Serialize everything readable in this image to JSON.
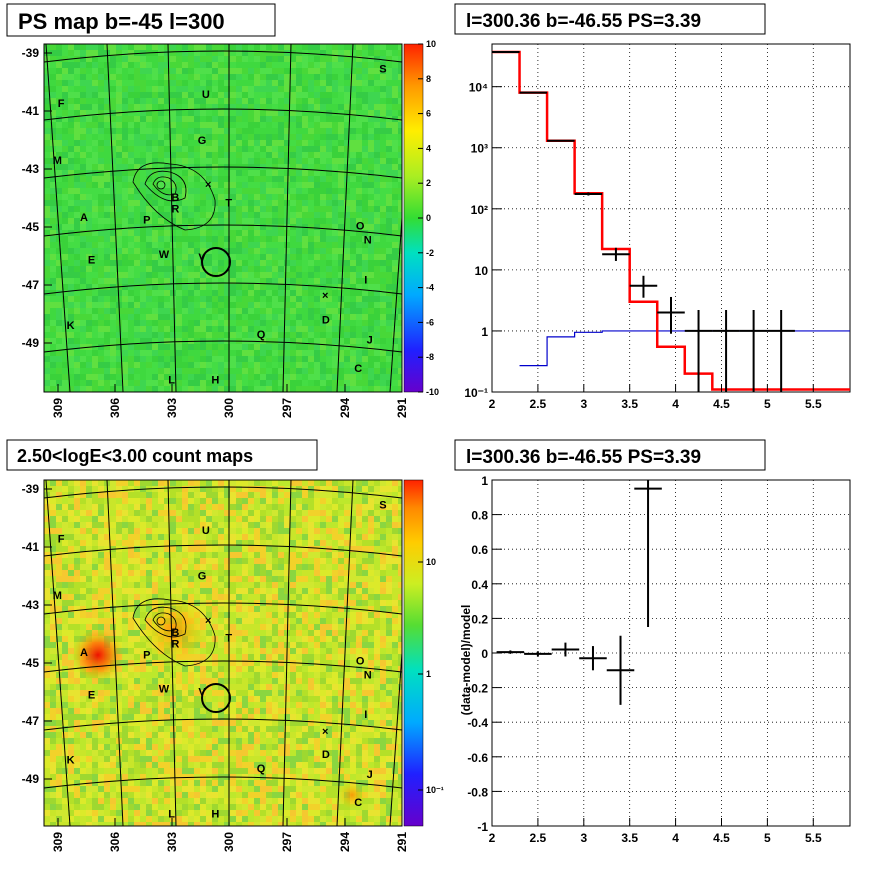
{
  "panels": {
    "ps_map": {
      "title": "PS map b=-45 l=300"
    },
    "count_map": {
      "title": "2.50<logE<3.00 count maps"
    },
    "spectrum": {
      "title": "l=300.36 b=-46.55 PS=3.39"
    },
    "residual": {
      "title": "l=300.36 b=-46.55 PS=3.39"
    }
  },
  "colors": {
    "data": "#000000",
    "model": "#ff0000",
    "background": "#0000cc",
    "map_green": "#33dd33"
  },
  "chart_data": [
    {
      "type": "heatmap",
      "id": "ps_map",
      "title": "PS map b=-45 l=300",
      "x_ticks": [
        "309",
        "306",
        "303",
        "300",
        "297",
        "294",
        "291"
      ],
      "y_ticks": [
        "-39",
        "-41",
        "-43",
        "-45",
        "-47",
        "-49"
      ],
      "colorbar_ticks": [
        "10",
        "8",
        "6",
        "4",
        "2",
        "0",
        "-2",
        "-4",
        "-6",
        "-8",
        "-10"
      ],
      "zlim": [
        -10,
        10
      ],
      "sources": [
        {
          "n": "S",
          "l": 291.7,
          "b": -39.6
        },
        {
          "n": "F",
          "l": 308.6,
          "b": -40.8
        },
        {
          "n": "U",
          "l": 301.0,
          "b": -40.5
        },
        {
          "n": "G",
          "l": 301.2,
          "b": -42.1
        },
        {
          "n": "M",
          "l": 308.8,
          "b": -42.8
        },
        {
          "n": "B",
          "l": 302.6,
          "b": -44.1
        },
        {
          "n": "R",
          "l": 302.6,
          "b": -44.5
        },
        {
          "n": "T",
          "l": 299.8,
          "b": -44.3
        },
        {
          "n": "A",
          "l": 307.4,
          "b": -44.8
        },
        {
          "n": "P",
          "l": 304.1,
          "b": -44.9
        },
        {
          "n": "O",
          "l": 292.9,
          "b": -45.1
        },
        {
          "n": "N",
          "l": 292.5,
          "b": -45.6
        },
        {
          "n": "E",
          "l": 307.0,
          "b": -46.3
        },
        {
          "n": "W",
          "l": 303.2,
          "b": -46.1
        },
        {
          "n": "V",
          "l": 301.2,
          "b": -46.2
        },
        {
          "n": "I",
          "l": 292.6,
          "b": -47.0
        },
        {
          "n": "D",
          "l": 294.7,
          "b": -48.4
        },
        {
          "n": "K",
          "l": 308.1,
          "b": -48.6
        },
        {
          "n": "Q",
          "l": 298.1,
          "b": -48.9
        },
        {
          "n": "J",
          "l": 292.4,
          "b": -49.1
        },
        {
          "n": "C",
          "l": 293.0,
          "b": -50.1
        },
        {
          "n": "L",
          "l": 302.8,
          "b": -50.5
        },
        {
          "n": "H",
          "l": 300.5,
          "b": -50.5
        }
      ],
      "circle": {
        "l": 300.36,
        "b": -46.55
      }
    },
    {
      "type": "heatmap",
      "id": "count_map",
      "title": "2.50<logE<3.00 count maps",
      "x_ticks": [
        "309",
        "306",
        "303",
        "300",
        "297",
        "294",
        "291"
      ],
      "y_ticks": [
        "-39",
        "-41",
        "-43",
        "-45",
        "-47",
        "-49"
      ],
      "colorbar_ticks": [
        "10",
        "1",
        "10⁻¹"
      ],
      "log_z": true
    },
    {
      "type": "line",
      "id": "spectrum",
      "title": "l=300.36 b=-46.55 PS=3.39",
      "x_ticks": [
        "2",
        "2.5",
        "3",
        "3.5",
        "4",
        "4.5",
        "5",
        "5.5"
      ],
      "y_ticks": [
        "10⁻¹",
        "1",
        "10",
        "10²",
        "10³",
        "10⁴"
      ],
      "xlim": [
        2,
        5.9
      ],
      "ylim": [
        0.1,
        50000
      ],
      "log_y": true,
      "grid": true,
      "data_points": [
        {
          "x": 2.15,
          "y": 37000,
          "xe": 0.15,
          "ylo": 36800,
          "yhi": 37200
        },
        {
          "x": 2.45,
          "y": 8000,
          "xe": 0.15,
          "ylo": 7900,
          "yhi": 8100
        },
        {
          "x": 2.75,
          "y": 1300,
          "xe": 0.15,
          "ylo": 1270,
          "yhi": 1330
        },
        {
          "x": 3.05,
          "y": 175,
          "xe": 0.15,
          "ylo": 165,
          "yhi": 185
        },
        {
          "x": 3.35,
          "y": 18,
          "xe": 0.15,
          "ylo": 14,
          "yhi": 23
        },
        {
          "x": 3.65,
          "y": 5.5,
          "xe": 0.15,
          "ylo": 3.5,
          "yhi": 8
        },
        {
          "x": 3.95,
          "y": 2.0,
          "xe": 0.15,
          "ylo": 0.9,
          "yhi": 3.6
        },
        {
          "x": 4.25,
          "y": 1.0,
          "xe": 0.15,
          "ylo": 0.1,
          "yhi": 2.2
        },
        {
          "x": 4.55,
          "y": 1.0,
          "xe": 0.15,
          "ylo": 0.1,
          "yhi": 2.2
        },
        {
          "x": 4.85,
          "y": 1.0,
          "xe": 0.15,
          "ylo": 0.1,
          "yhi": 2.2
        },
        {
          "x": 5.15,
          "y": 1.0,
          "xe": 0.15,
          "ylo": 0.1,
          "yhi": 2.2
        }
      ],
      "model_steps": [
        {
          "x0": 2.0,
          "x1": 2.3,
          "y": 37000
        },
        {
          "x0": 2.3,
          "x1": 2.6,
          "y": 8000
        },
        {
          "x0": 2.6,
          "x1": 2.9,
          "y": 1300
        },
        {
          "x0": 2.9,
          "x1": 3.2,
          "y": 180
        },
        {
          "x0": 3.2,
          "x1": 3.5,
          "y": 22
        },
        {
          "x0": 3.5,
          "x1": 3.8,
          "y": 3.0
        },
        {
          "x0": 3.8,
          "x1": 4.1,
          "y": 0.55
        },
        {
          "x0": 4.1,
          "x1": 4.4,
          "y": 0.2
        },
        {
          "x0": 4.4,
          "x1": 5.9,
          "y": 0.11
        }
      ],
      "bkg_steps": [
        {
          "x0": 2.3,
          "x1": 2.6,
          "y": 0.27
        },
        {
          "x0": 2.6,
          "x1": 2.9,
          "y": 0.8
        },
        {
          "x0": 2.9,
          "x1": 3.2,
          "y": 0.95
        },
        {
          "x0": 3.2,
          "x1": 5.9,
          "y": 1.0
        }
      ]
    },
    {
      "type": "scatter",
      "id": "residual",
      "title": "l=300.36 b=-46.55 PS=3.39",
      "ylabel": "(data-model)/model",
      "x_ticks": [
        "2",
        "2.5",
        "3",
        "3.5",
        "4",
        "4.5",
        "5",
        "5.5"
      ],
      "y_ticks": [
        "1",
        "0.8",
        "0.6",
        "0.4",
        "0.2",
        "0",
        "-0.2",
        "-0.4",
        "-0.6",
        "-0.8",
        "-1"
      ],
      "xlim": [
        2,
        5.9
      ],
      "ylim": [
        -1,
        1
      ],
      "grid": true,
      "points": [
        {
          "x": 2.2,
          "y": 0.005,
          "xe": 0.15,
          "ylo": -0.005,
          "yhi": 0.015
        },
        {
          "x": 2.5,
          "y": -0.005,
          "xe": 0.15,
          "ylo": -0.02,
          "yhi": 0.01
        },
        {
          "x": 2.8,
          "y": 0.02,
          "xe": 0.15,
          "ylo": -0.02,
          "yhi": 0.06
        },
        {
          "x": 3.1,
          "y": -0.03,
          "xe": 0.15,
          "ylo": -0.1,
          "yhi": 0.04
        },
        {
          "x": 3.4,
          "y": -0.1,
          "xe": 0.15,
          "ylo": -0.3,
          "yhi": 0.1
        },
        {
          "x": 3.7,
          "y": 0.95,
          "xe": 0.15,
          "ylo": 0.15,
          "yhi": 1.0
        }
      ]
    }
  ]
}
